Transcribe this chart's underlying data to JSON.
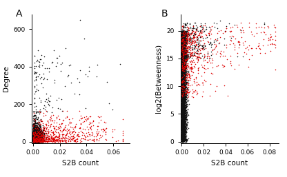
{
  "panel_A": {
    "label": "A",
    "xlabel": "S2B count",
    "ylabel": "Degree",
    "xlim": [
      -0.001,
      0.072
    ],
    "ylim": [
      -8,
      680
    ],
    "xticks": [
      0.0,
      0.02,
      0.04,
      0.06
    ],
    "yticks": [
      0,
      200,
      400,
      600
    ],
    "point_size": 1.2,
    "black_color": "#111111",
    "red_color": "#dd0000"
  },
  "panel_B": {
    "label": "B",
    "xlabel": "S2B count",
    "ylabel": "log2(Betweenness)",
    "xlim": [
      -0.001,
      0.088
    ],
    "ylim": [
      -0.3,
      23
    ],
    "xticks": [
      0.0,
      0.02,
      0.04,
      0.06,
      0.08
    ],
    "yticks": [
      0,
      5,
      10,
      15,
      20
    ],
    "point_size": 1.2,
    "black_color": "#111111",
    "red_color": "#dd0000"
  },
  "figsize": [
    4.16,
    2.57
  ],
  "dpi": 100,
  "bg_color": "#ffffff"
}
